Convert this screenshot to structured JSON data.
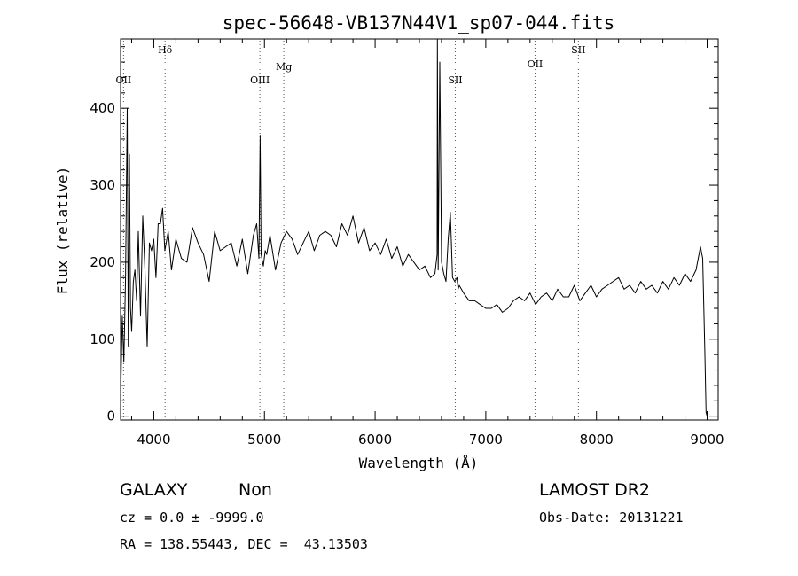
{
  "chart_data": {
    "type": "line",
    "title": "spec-56648-VB137N44V1_sp07-044.fits",
    "xlabel": "Wavelength (Å)",
    "ylabel": "Flux (relative)",
    "xlim": [
      3700,
      9100
    ],
    "ylim": [
      -5,
      490
    ],
    "xticks": [
      4000,
      5000,
      6000,
      7000,
      8000,
      9000
    ],
    "yticks": [
      0,
      100,
      200,
      300,
      400
    ],
    "series": [
      {
        "x": [
          3700,
          3715,
          3730,
          3745,
          3760,
          3770,
          3780,
          3790,
          3800,
          3815,
          3830,
          3845,
          3860,
          3880,
          3900,
          3920,
          3940,
          3960,
          3980,
          4000,
          4020,
          4040,
          4060,
          4080,
          4100,
          4130,
          4160,
          4200,
          4250,
          4300,
          4350,
          4400,
          4450,
          4500,
          4550,
          4600,
          4650,
          4700,
          4750,
          4800,
          4850,
          4900,
          4930,
          4950,
          4961,
          4970,
          4990,
          5007,
          5020,
          5050,
          5100,
          5150,
          5200,
          5250,
          5300,
          5350,
          5400,
          5450,
          5500,
          5550,
          5600,
          5650,
          5700,
          5750,
          5800,
          5850,
          5900,
          5950,
          6000,
          6050,
          6100,
          6150,
          6200,
          6250,
          6300,
          6350,
          6400,
          6450,
          6500,
          6540,
          6560,
          6563,
          6570,
          6584,
          6600,
          6620,
          6640,
          6660,
          6680,
          6700,
          6720,
          6740,
          6750,
          6760,
          6780,
          6800,
          6850,
          6900,
          6950,
          7000,
          7050,
          7100,
          7150,
          7200,
          7250,
          7300,
          7350,
          7400,
          7450,
          7500,
          7550,
          7600,
          7650,
          7700,
          7750,
          7800,
          7850,
          7900,
          7950,
          8000,
          8050,
          8100,
          8150,
          8200,
          8250,
          8300,
          8350,
          8400,
          8450,
          8500,
          8550,
          8600,
          8650,
          8700,
          8750,
          8800,
          8850,
          8900,
          8940,
          8960,
          8980,
          8990,
          9000
        ],
        "y": [
          20,
          130,
          70,
          180,
          400,
          90,
          340,
          140,
          110,
          175,
          190,
          150,
          240,
          130,
          260,
          190,
          90,
          225,
          215,
          230,
          180,
          250,
          250,
          270,
          215,
          240,
          190,
          230,
          205,
          200,
          245,
          225,
          210,
          175,
          240,
          215,
          220,
          225,
          195,
          230,
          185,
          235,
          250,
          205,
          365,
          210,
          195,
          215,
          210,
          235,
          190,
          225,
          240,
          230,
          210,
          225,
          240,
          215,
          235,
          240,
          235,
          220,
          250,
          235,
          260,
          225,
          245,
          215,
          225,
          210,
          230,
          205,
          220,
          195,
          210,
          200,
          190,
          195,
          180,
          185,
          210,
          490,
          190,
          460,
          200,
          185,
          175,
          230,
          265,
          180,
          175,
          180,
          165,
          170,
          165,
          160,
          150,
          150,
          145,
          140,
          140,
          145,
          135,
          140,
          150,
          155,
          150,
          160,
          145,
          155,
          160,
          150,
          165,
          155,
          155,
          170,
          150,
          160,
          170,
          155,
          165,
          170,
          175,
          180,
          165,
          170,
          160,
          175,
          165,
          170,
          160,
          175,
          165,
          180,
          170,
          185,
          175,
          190,
          220,
          205,
          80,
          5,
          0
        ]
      }
    ],
    "annotations": [
      {
        "label": "OII",
        "wavelength": 3727
      },
      {
        "label": "Hδ",
        "wavelength": 4102
      },
      {
        "label": "OIII",
        "wavelength": 4959
      },
      {
        "label": "Mg",
        "wavelength": 5175
      },
      {
        "label": "SII",
        "wavelength": 6724
      },
      {
        "label": "OII",
        "wavelength": 7445
      },
      {
        "label": "SII",
        "wavelength": 7837
      }
    ]
  },
  "info": {
    "object_class": "GALAXY",
    "subclass": "Non",
    "cz": "cz = 0.0 ± -9999.0",
    "radec": "RA = 138.55443, DEC =  43.13503",
    "survey": "LAMOST DR2",
    "obs_date": "Obs-Date: 20131221"
  }
}
